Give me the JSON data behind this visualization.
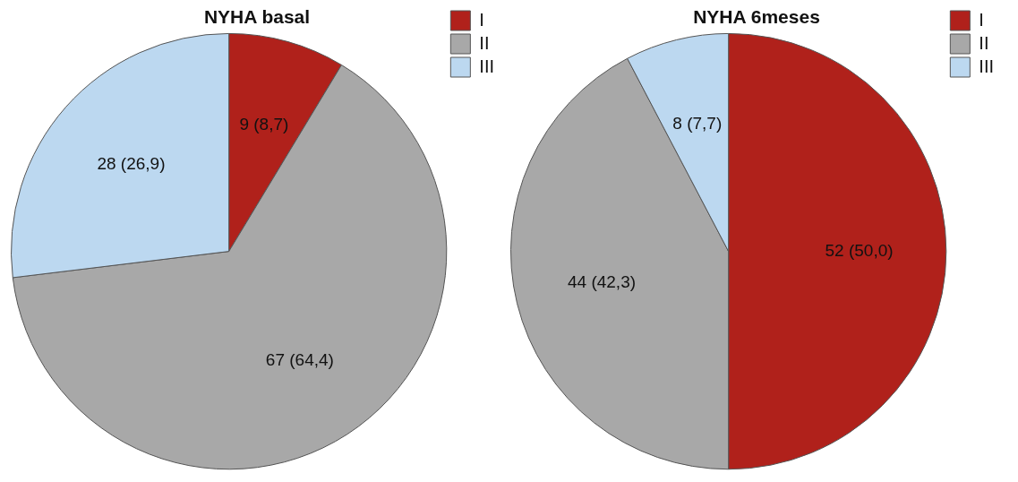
{
  "chart_data": [
    {
      "type": "pie",
      "title": "NYHA basal",
      "categories": [
        "I",
        "II",
        "III"
      ],
      "values": [
        9,
        67,
        28
      ],
      "value_labels": [
        "9 (8,7)",
        "67 (64,4)",
        "28 (26,9)"
      ],
      "colors": [
        "#b0211b",
        "#a8a8a8",
        "#bcd8f0"
      ],
      "legend": "top right"
    },
    {
      "type": "pie",
      "title": "NYHA 6meses",
      "categories": [
        "I",
        "II",
        "III"
      ],
      "values": [
        52,
        44,
        8
      ],
      "value_labels": [
        "52 (50,0)",
        "44 (42,3)",
        "8 (7,7)"
      ],
      "colors": [
        "#b0211b",
        "#a8a8a8",
        "#bcd8f0"
      ],
      "legend": "top right"
    }
  ]
}
